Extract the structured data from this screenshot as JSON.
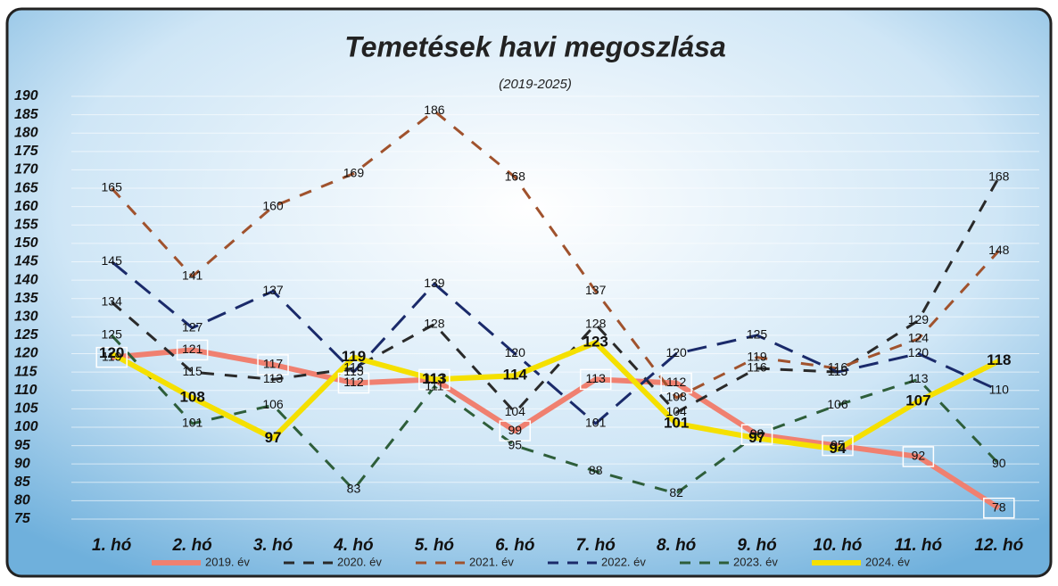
{
  "chart_data": {
    "type": "line",
    "title": "Temetések havi megoszlása",
    "subtitle": "(2019-2025)",
    "categories": [
      "1. hó",
      "2. hó",
      "3. hó",
      "4. hó",
      "5. hó",
      "6. hó",
      "7. hó",
      "8. hó",
      "9. hó",
      "10. hó",
      "11. hó",
      "12. hó"
    ],
    "series": [
      {
        "name": "2019. év",
        "color": "#f08070",
        "dash": "solid",
        "values": [
          119,
          121,
          117,
          112,
          113,
          99,
          113,
          112,
          98,
          95,
          92,
          78
        ]
      },
      {
        "name": "2020. év",
        "color": "#2a2a2a",
        "dash": "dashed",
        "values": [
          134,
          115,
          113,
          116,
          128,
          104,
          128,
          104,
          116,
          115,
          129,
          168
        ]
      },
      {
        "name": "2021. év",
        "color": "#a0522d",
        "dash": "dashed",
        "values": [
          165,
          141,
          160,
          169,
          186,
          168,
          137,
          108,
          119,
          116,
          124,
          148
        ]
      },
      {
        "name": "2022. év",
        "color": "#1a2a6a",
        "dash": "dashed",
        "values": [
          145,
          127,
          137,
          115,
          139,
          120,
          101,
          120,
          125,
          115,
          120,
          110
        ]
      },
      {
        "name": "2023. év",
        "color": "#2e5e3a",
        "dash": "dashed",
        "values": [
          125,
          101,
          106,
          83,
          111,
          95,
          88,
          82,
          98,
          106,
          113,
          90
        ]
      },
      {
        "name": "2024. év",
        "color": "#f5e000",
        "dash": "solid",
        "values": [
          120,
          108,
          97,
          119,
          113,
          114,
          123,
          101,
          97,
          94,
          107,
          118
        ]
      }
    ],
    "ylim": [
      75,
      190
    ],
    "yticks": [
      75,
      80,
      85,
      90,
      95,
      100,
      105,
      110,
      115,
      120,
      125,
      130,
      135,
      140,
      145,
      150,
      155,
      160,
      165,
      170,
      175,
      180,
      185,
      190
    ],
    "grid": true
  }
}
